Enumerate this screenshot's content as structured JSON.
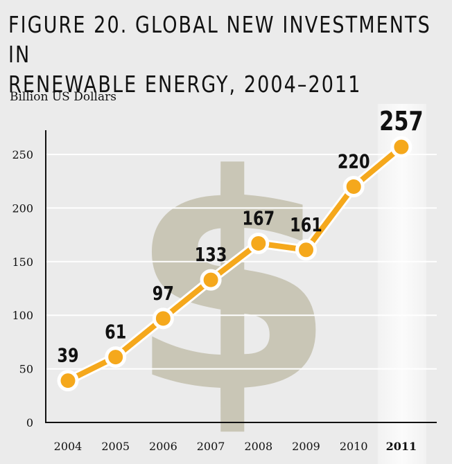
{
  "figure": {
    "title_line1": "FIGURE 20. GLOBAL NEW INVESTMENTS IN",
    "title_line2": "RENEWABLE ENERGY, 2004–2011"
  },
  "chart_data": {
    "type": "line",
    "title": "FIGURE 20. GLOBAL NEW INVESTMENTS IN RENEWABLE ENERGY, 2004–2011",
    "ylabel": "Billion US Dollars",
    "xlabel": "",
    "categories": [
      "2004",
      "2005",
      "2006",
      "2007",
      "2008",
      "2009",
      "2010",
      "2011"
    ],
    "series": [
      {
        "values": [
          39,
          61,
          97,
          133,
          167,
          161,
          220,
          257
        ]
      }
    ],
    "yticks": [
      0,
      50,
      100,
      150,
      200,
      250
    ],
    "ylim": [
      0,
      280
    ],
    "grid": true,
    "highlight_category": "2011",
    "background_symbol": "$",
    "colors": {
      "line": "#f5a81c",
      "marker_fill": "#f5a81c",
      "marker_stroke": "#ffffff",
      "grid": "#ffffff",
      "background": "#ebebeb",
      "symbol": "#bdb9a4",
      "highlight_band": "#f7f7f7"
    }
  }
}
